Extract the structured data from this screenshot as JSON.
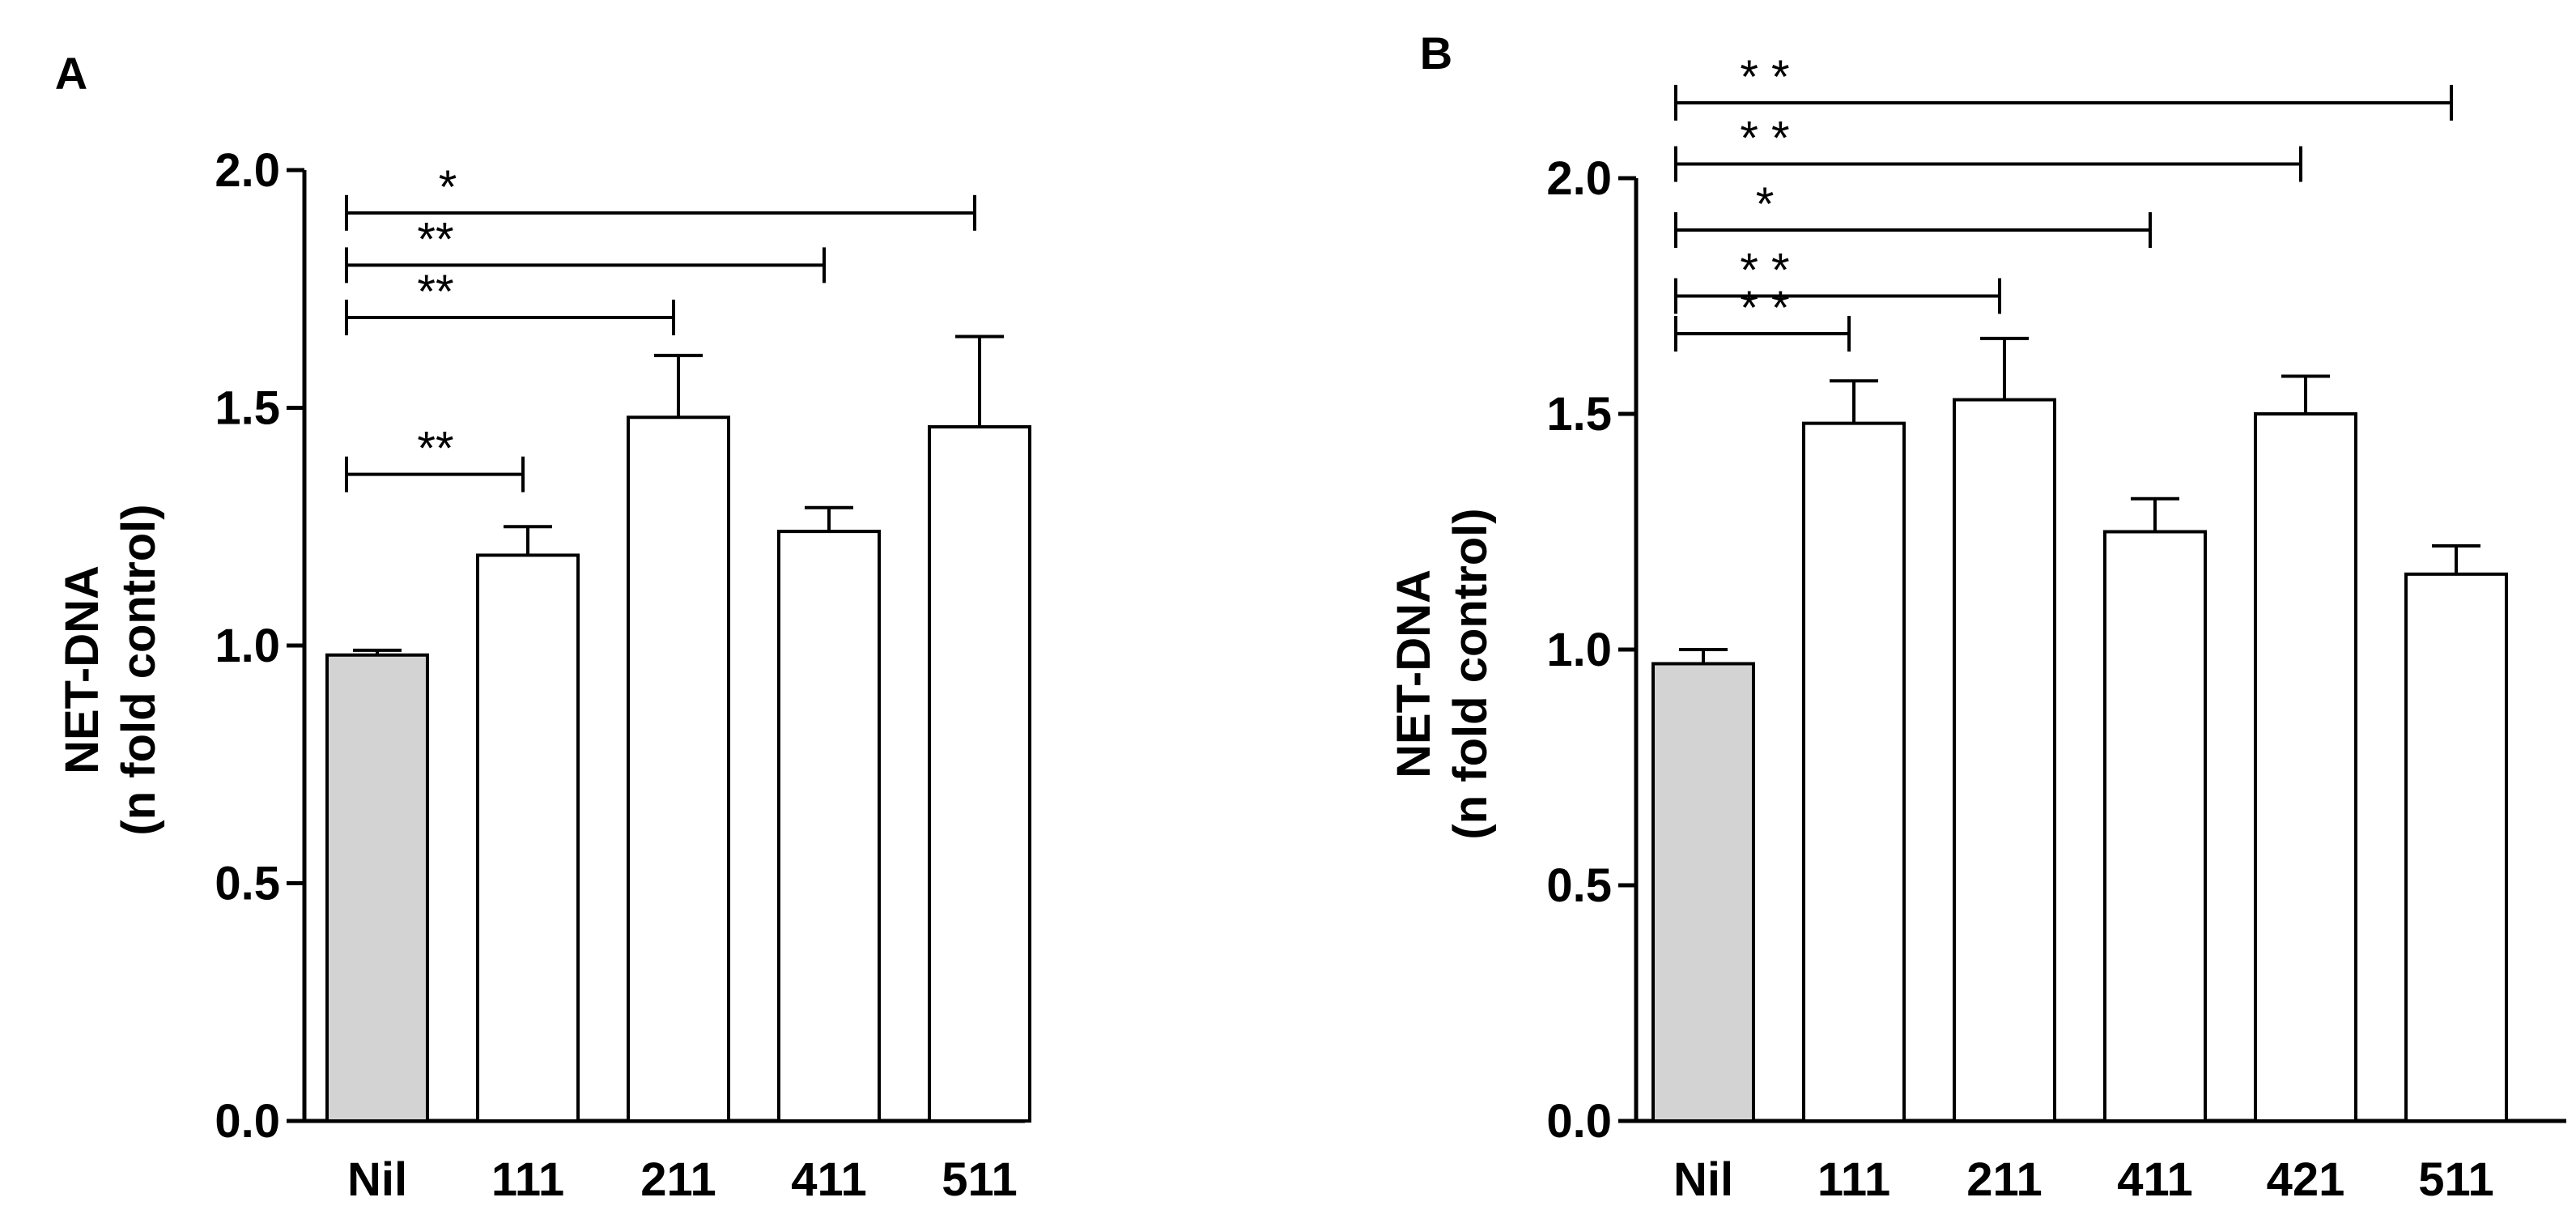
{
  "colors": {
    "control_fill": "#d3d3d3",
    "treatment_fill": "#ffffff",
    "stroke": "#000000"
  },
  "chart_data": [
    {
      "type": "bar",
      "panel_label": "A",
      "title": "",
      "xlabel": "",
      "ylabel": [
        "NET-DNA",
        "(n fold control)"
      ],
      "ylim": [
        0.0,
        2.0
      ],
      "yticks": [
        "0.0",
        "0.5",
        "1.0",
        "1.5",
        "2.0"
      ],
      "categories": [
        "Nil",
        "111",
        "211",
        "411",
        "511"
      ],
      "values": [
        0.98,
        1.19,
        1.48,
        1.24,
        1.46
      ],
      "errors": [
        0.01,
        0.06,
        0.13,
        0.05,
        0.19
      ],
      "significance": [
        {
          "from": "Nil",
          "to": "111",
          "label": "**",
          "y": 1.36
        },
        {
          "from": "Nil",
          "to": "211",
          "label": "**",
          "y": 1.69
        },
        {
          "from": "Nil",
          "to": "411",
          "label": "**",
          "y": 1.8
        },
        {
          "from": "Nil",
          "to": "511",
          "label": "*",
          "y": 1.91
        }
      ]
    },
    {
      "type": "bar",
      "panel_label": "B",
      "title": "",
      "xlabel": "",
      "ylabel": [
        "NET-DNA",
        "(n fold control)"
      ],
      "ylim": [
        0.0,
        2.0
      ],
      "yticks": [
        "0.0",
        "0.5",
        "1.0",
        "1.5",
        "2.0"
      ],
      "categories": [
        "Nil",
        "111",
        "211",
        "411",
        "421",
        "511"
      ],
      "values": [
        0.97,
        1.48,
        1.53,
        1.25,
        1.5,
        1.16
      ],
      "errors": [
        0.03,
        0.09,
        0.13,
        0.07,
        0.08,
        0.06
      ],
      "significance": [
        {
          "from": "Nil",
          "to": "111",
          "label": "* *",
          "y": 1.67
        },
        {
          "from": "Nil",
          "to": "211",
          "label": "* *",
          "y": 1.75
        },
        {
          "from": "Nil",
          "to": "411",
          "label": "*",
          "y": 1.89
        },
        {
          "from": "Nil",
          "to": "421",
          "label": "* *",
          "y": 2.03
        },
        {
          "from": "Nil",
          "to": "511",
          "label": "* *",
          "y": 2.16
        }
      ]
    }
  ]
}
